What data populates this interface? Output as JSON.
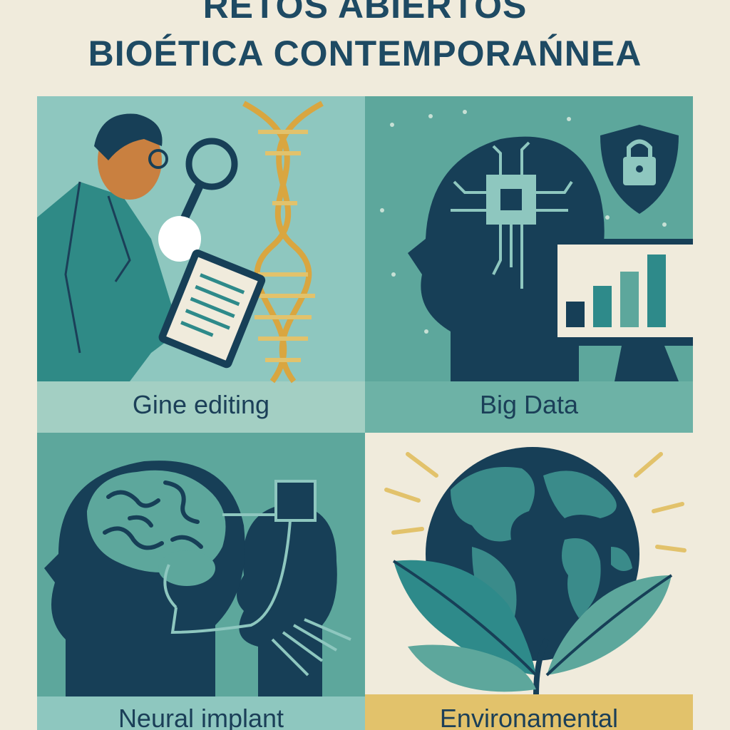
{
  "title": {
    "line1": "RETOS ABIERTOS",
    "line2": "BIOÉTICA CONTEMPORAŃNEA"
  },
  "panels": [
    {
      "label": "Gine editing",
      "icon": "scientist-dna-icon"
    },
    {
      "label": "Big Data",
      "icon": "ai-head-data-icon"
    },
    {
      "label": "Neural implant",
      "icon": "brain-implant-icon"
    },
    {
      "label": "Environamental",
      "icon": "earth-plant-icon"
    }
  ],
  "colors": {
    "background": "#f0ebdc",
    "navy": "#173f57",
    "teal": "#2e8a8a",
    "light_teal": "#8ec7bf",
    "gold": "#e2c26b"
  }
}
